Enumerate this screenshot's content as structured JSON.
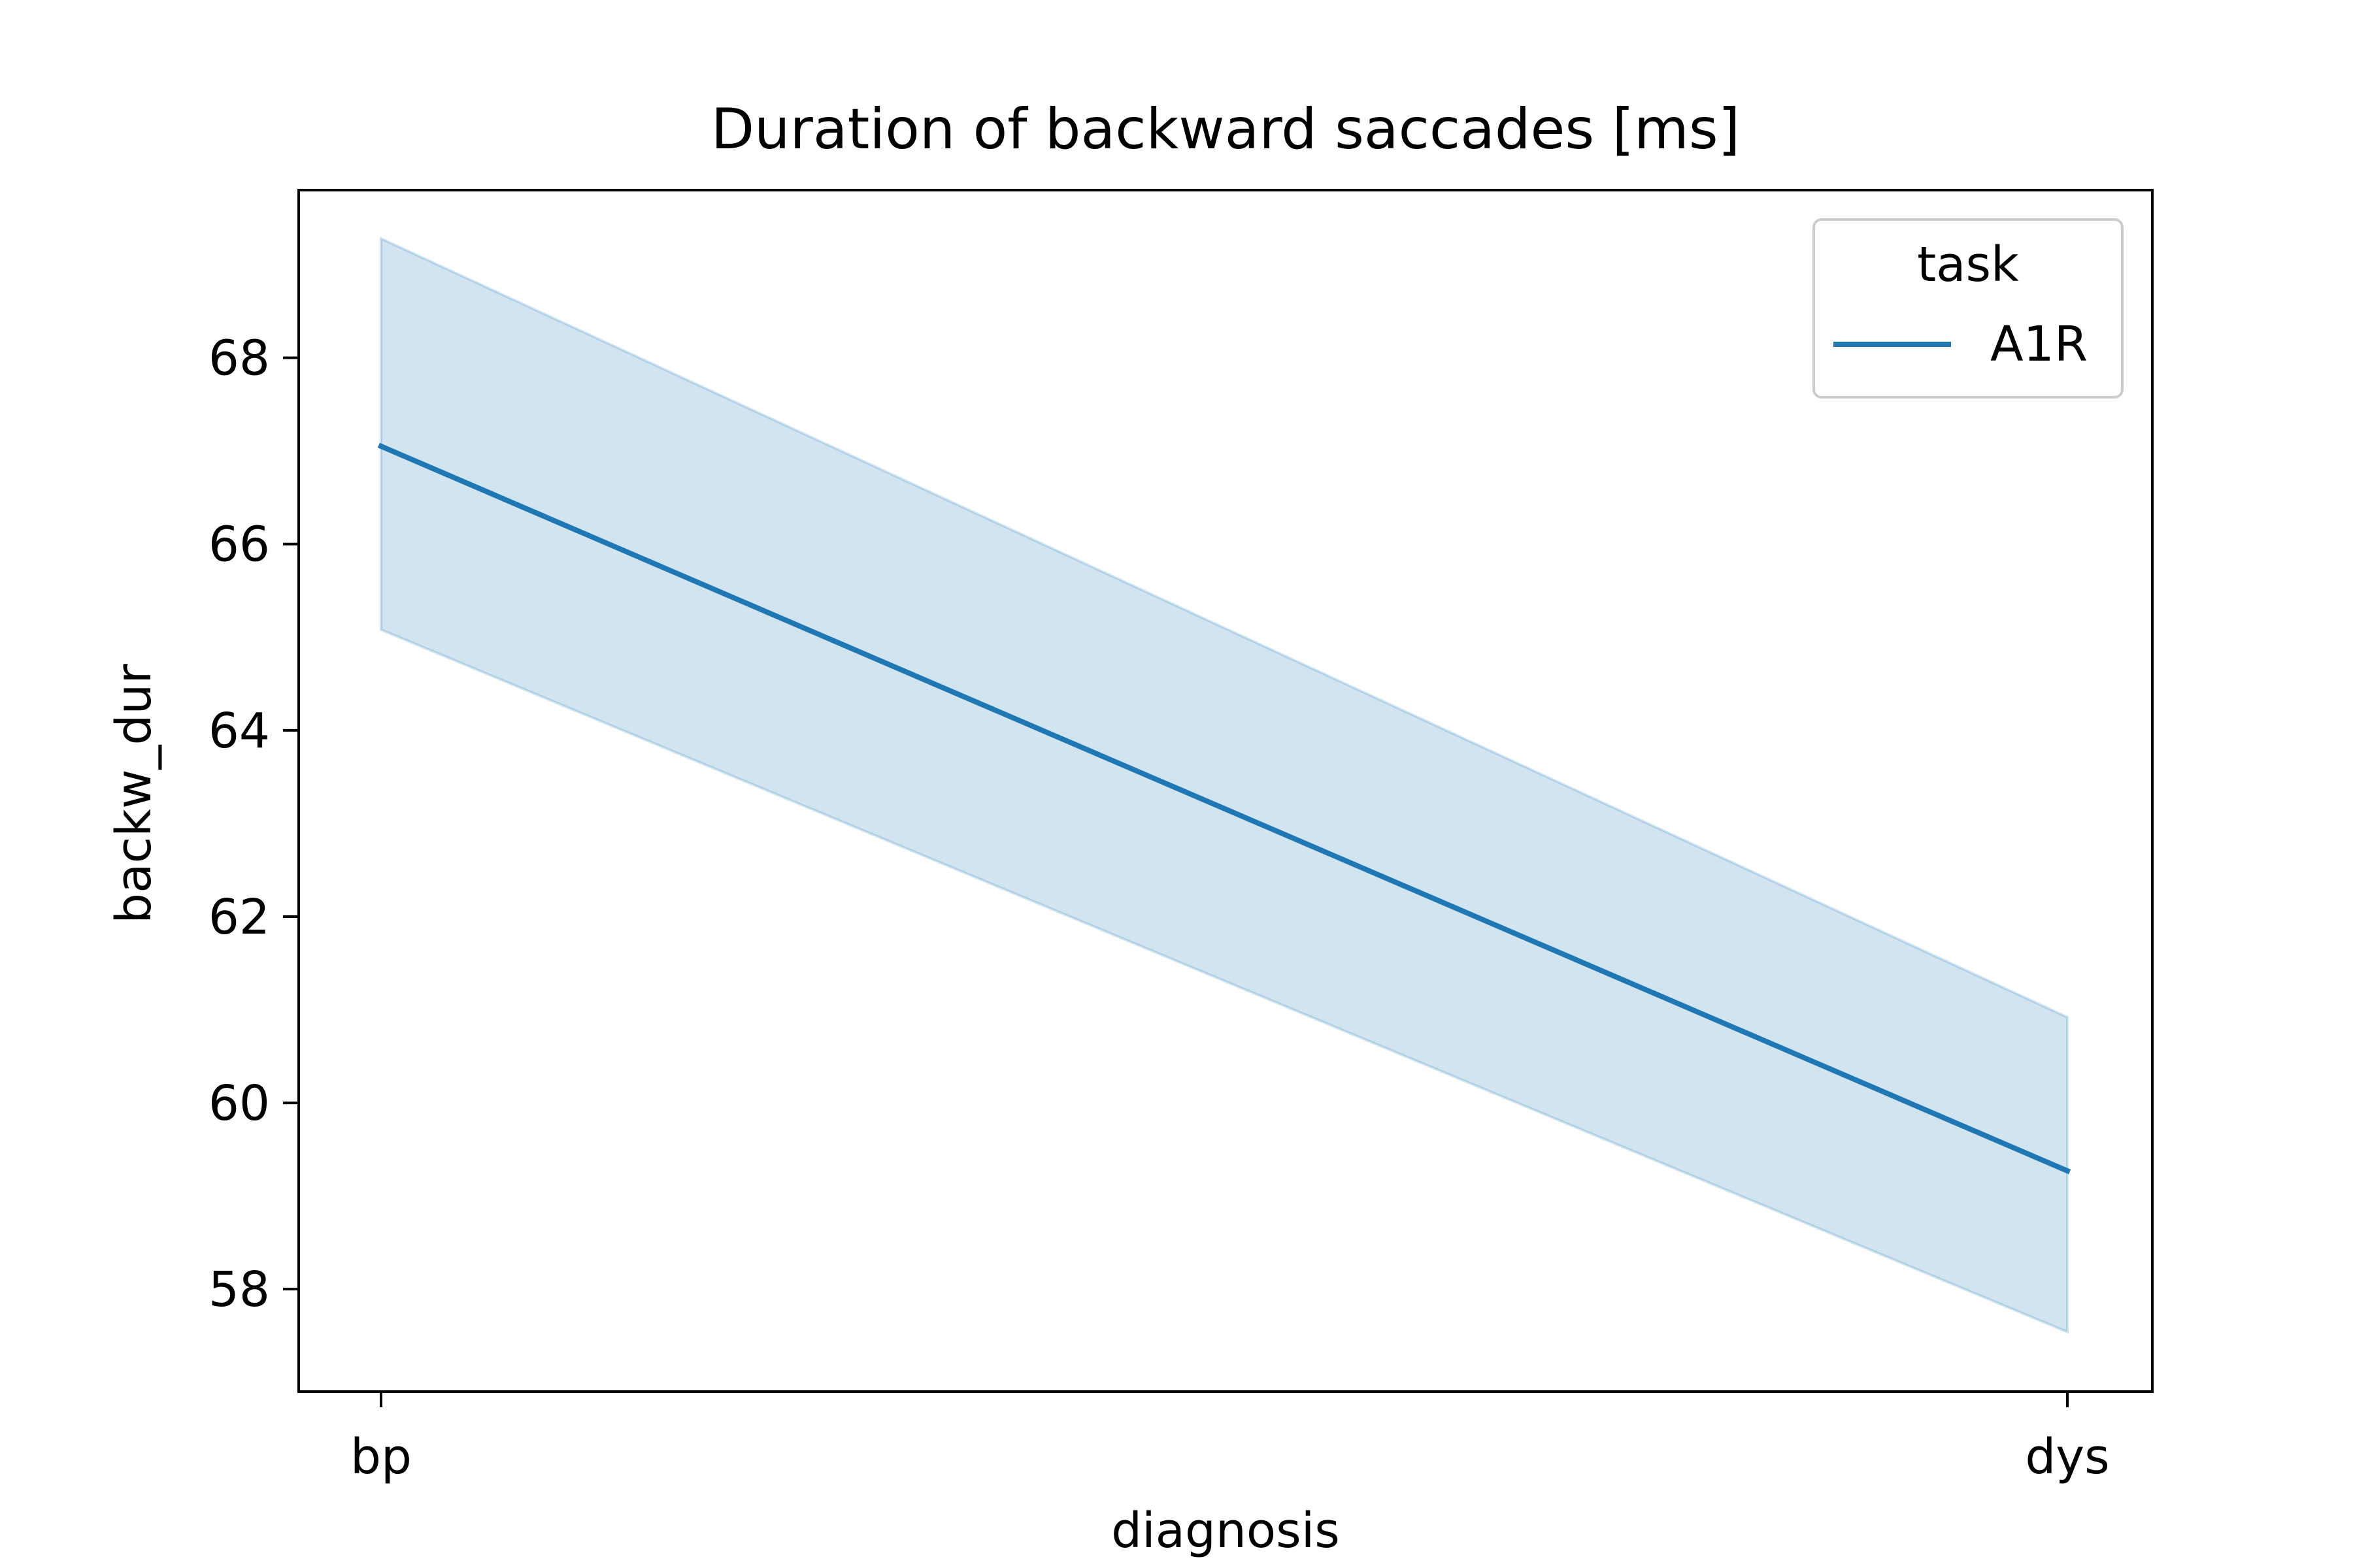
{
  "chart_data": {
    "type": "line",
    "title": "Duration of backward saccades [ms]",
    "xlabel": "diagnosis",
    "ylabel": "backw_dur",
    "categories": [
      "bp",
      "dys"
    ],
    "yticks": [
      58,
      60,
      62,
      64,
      66,
      68
    ],
    "ylim": [
      56.9,
      69.8
    ],
    "grid": false,
    "legend": {
      "title": "task",
      "placement": "top-right"
    },
    "series": [
      {
        "name": "A1R",
        "values": [
          67.05,
          59.27
        ],
        "ci_lower": [
          65.08,
          57.54
        ],
        "ci_upper": [
          69.28,
          60.92
        ],
        "color": "#1f77b4",
        "band_color": "#1f77b4"
      }
    ]
  }
}
